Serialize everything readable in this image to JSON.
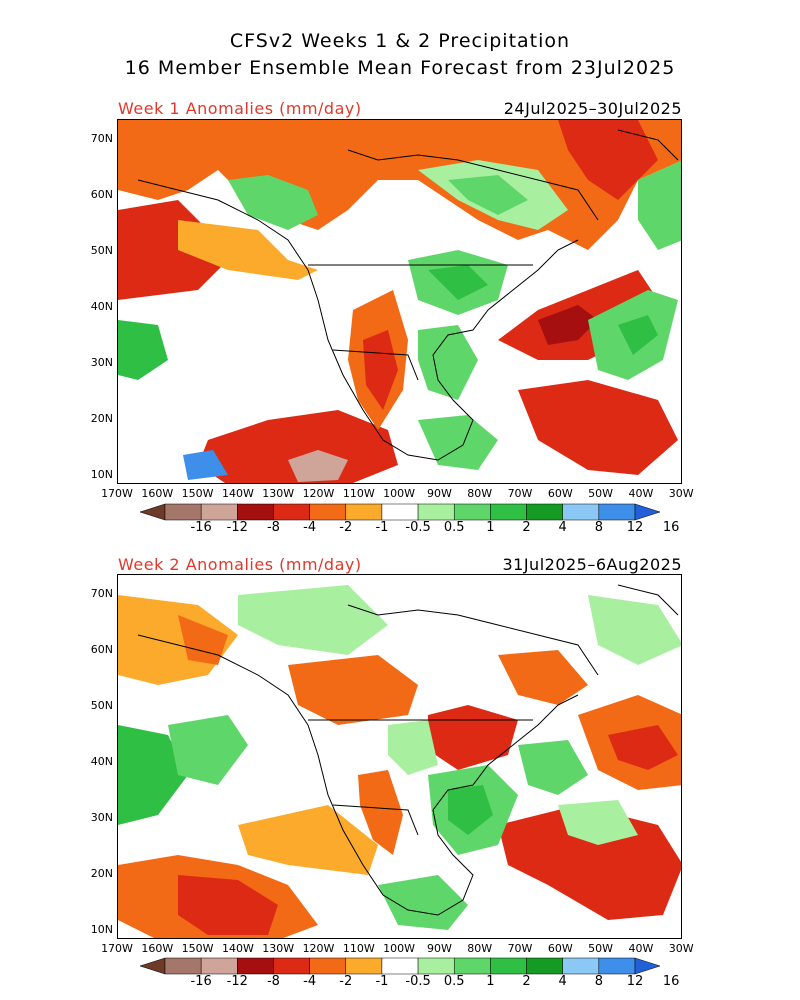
{
  "header": {
    "line1": "CFSv2 Weeks 1 & 2 Precipitation",
    "line2": "16 Member Ensemble Mean Forecast from 23Jul2025"
  },
  "panels": [
    {
      "label": "Week 1 Anomalies (mm/day)",
      "dates": "24Jul2025–30Jul2025"
    },
    {
      "label": "Week 2 Anomalies (mm/day)",
      "dates": "31Jul2025–6Aug2025"
    }
  ],
  "lat_labels": [
    "70N",
    "60N",
    "50N",
    "40N",
    "30N",
    "20N",
    "10N"
  ],
  "lon_labels": [
    "170W",
    "160W",
    "150W",
    "140W",
    "130W",
    "120W",
    "110W",
    "100W",
    "90W",
    "80W",
    "70W",
    "60W",
    "50W",
    "40W",
    "30W"
  ],
  "colorbar": {
    "ticks": [
      "-16",
      "-12",
      "-8",
      "-4",
      "-2",
      "-1",
      "-0.5",
      "0.5",
      "1",
      "2",
      "4",
      "8",
      "12",
      "16"
    ],
    "colors": [
      "#6e3b28",
      "#a5776a",
      "#cfa59a",
      "#a50f0f",
      "#dc2a15",
      "#f26a15",
      "#fbaa2c",
      "#ffffff",
      "#a8f0a0",
      "#5fd66a",
      "#2fbf44",
      "#159a24",
      "#8cc8f5",
      "#3d8fea",
      "#2160d8"
    ]
  },
  "palette": {
    "dry_strong": "#a50f0f",
    "dry_mod": "#dc2a15",
    "dry_light": "#f26a15",
    "dry_weak": "#fbaa2c",
    "wet_weak": "#a8f0a0",
    "wet_light": "#5fd66a",
    "wet_mod": "#2fbf44",
    "wet_strong": "#159a24",
    "wet_xs": "#8cc8f5",
    "brown": "#a5776a",
    "pink": "#cfa59a",
    "blue": "#3d8fea"
  }
}
